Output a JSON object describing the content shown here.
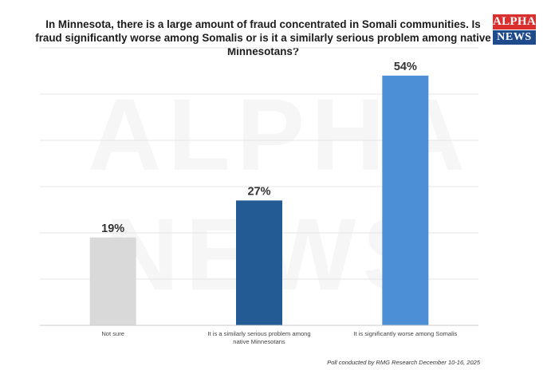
{
  "logo": {
    "line1": "ALPHA",
    "line2": "NEWS",
    "colors": {
      "top": "#d9302f",
      "bottom": "#1f4a8c"
    }
  },
  "chart_data": {
    "type": "bar",
    "title": "In Minnesota, there is a large amount of fraud concentrated in Somali communities. Is fraud significantly worse among Somalis or is it a similarly serious problem among native Minnesotans?",
    "categories": [
      "Not sure",
      "It is a similarly serious problem among native Minnesotans",
      "It is significantly worse among Somalis"
    ],
    "values": [
      19,
      27,
      54
    ],
    "labels": [
      "19%",
      "27%",
      "54%"
    ],
    "colors": [
      "#d9d9d9",
      "#235b94",
      "#4d8fd6"
    ],
    "ylim": [
      0,
      60
    ],
    "grid": true,
    "xlabel": "",
    "ylabel": ""
  },
  "footer": "Poll conducted by RMG Research December 10-16, 2025"
}
